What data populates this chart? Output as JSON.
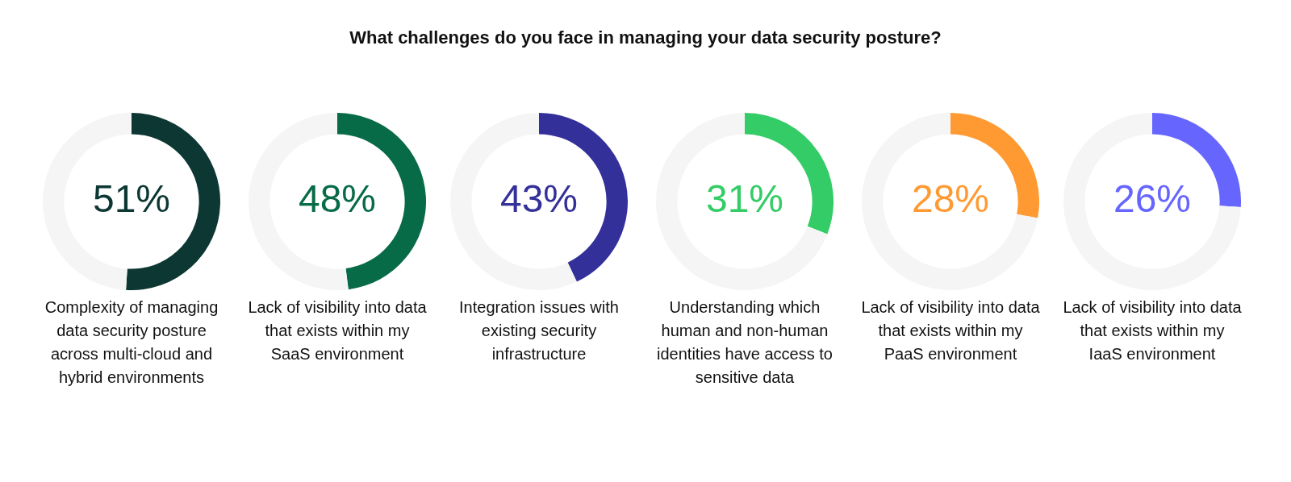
{
  "chart_data": [
    {
      "type": "donut",
      "title": "What challenges do you face in managing your data security posture?",
      "xlabel": "Complexity of managing data security posture across multi-cloud and hybrid environments",
      "categories": [
        null,
        null
      ],
      "values": [
        51,
        49
      ],
      "colors": [
        "#0d3733",
        "#f5f5f5"
      ],
      "value_labels": [
        "51%",
        null
      ]
    },
    {
      "type": "donut",
      "xlabel": "Lack of visibility into data that exists within my SaaS environment",
      "categories": [
        null,
        null
      ],
      "values": [
        48,
        52
      ],
      "colors": [
        "#086b47",
        "#f5f5f5"
      ],
      "value_labels": [
        "48%",
        null
      ]
    },
    {
      "type": "donut",
      "xlabel": "Integration issues with existing security infrastructure",
      "categories": [
        null,
        null
      ],
      "values": [
        43,
        57
      ],
      "colors": [
        "#34309a",
        "#f5f5f5"
      ],
      "value_labels": [
        "43%",
        null
      ]
    },
    {
      "type": "donut",
      "xlabel": "Understanding which human and non-human identities have access to sensitive data",
      "categories": [
        null,
        null
      ],
      "values": [
        31,
        69
      ],
      "colors": [
        "#33cc66",
        "#f5f5f5"
      ],
      "value_labels": [
        "31%",
        null
      ]
    },
    {
      "type": "donut",
      "xlabel": "Lack of visibility into data that exists within my PaaS environment",
      "categories": [
        null,
        null
      ],
      "values": [
        28,
        72
      ],
      "colors": [
        "#ff9a33",
        "#f5f5f5"
      ],
      "value_labels": [
        "28%",
        null
      ]
    },
    {
      "type": "donut",
      "xlabel": "Lack of visibility into data that exists within my IaaS environment",
      "categories": [
        null,
        null
      ],
      "values": [
        26,
        74
      ],
      "colors": [
        "#6666ff",
        "#f5f5f5"
      ],
      "value_labels": [
        "26%",
        null
      ]
    }
  ]
}
